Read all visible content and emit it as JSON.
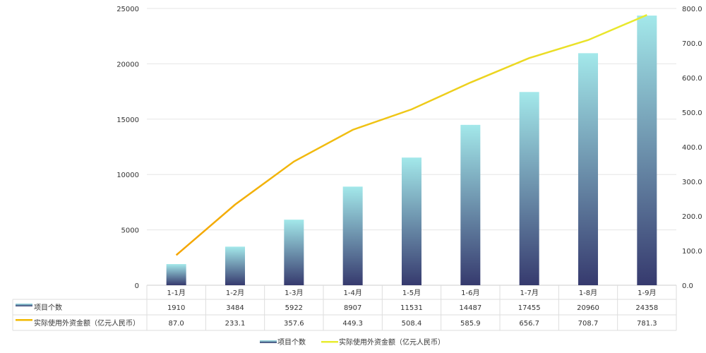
{
  "chart_data": {
    "type": "bar+line",
    "categories": [
      "1-1月",
      "1-2月",
      "1-3月",
      "1-4月",
      "1-5月",
      "1-6月",
      "1-7月",
      "1-8月",
      "1-9月"
    ],
    "series": [
      {
        "name": "项目个数",
        "type": "bar",
        "axis": "left",
        "values": [
          1910,
          3484,
          5922,
          8907,
          11531,
          14487,
          17455,
          20960,
          24358
        ],
        "color_top": "#a3e8ea",
        "color_bottom": "#363a6e"
      },
      {
        "name": "实际使用外资金额（亿元人民币）",
        "type": "line",
        "axis": "right",
        "values": [
          "87.0",
          "233.1",
          "357.6",
          "449.3",
          "508.4",
          "585.9",
          "656.7",
          "708.7",
          "781.3"
        ],
        "color_start": "#f5a500",
        "color_end": "#e8ec30"
      }
    ],
    "left_axis": {
      "ylim": [
        0,
        25000
      ],
      "ticks": [
        "0",
        "5000",
        "10000",
        "15000",
        "20000",
        "25000"
      ]
    },
    "right_axis": {
      "ylim": [
        0,
        800
      ],
      "ticks": [
        "0.0",
        "100.0",
        "200.0",
        "300.0",
        "400.0",
        "500.0",
        "600.0",
        "700.0",
        "800.0"
      ]
    },
    "grid": true,
    "legend": "bottom",
    "data_table": true
  }
}
